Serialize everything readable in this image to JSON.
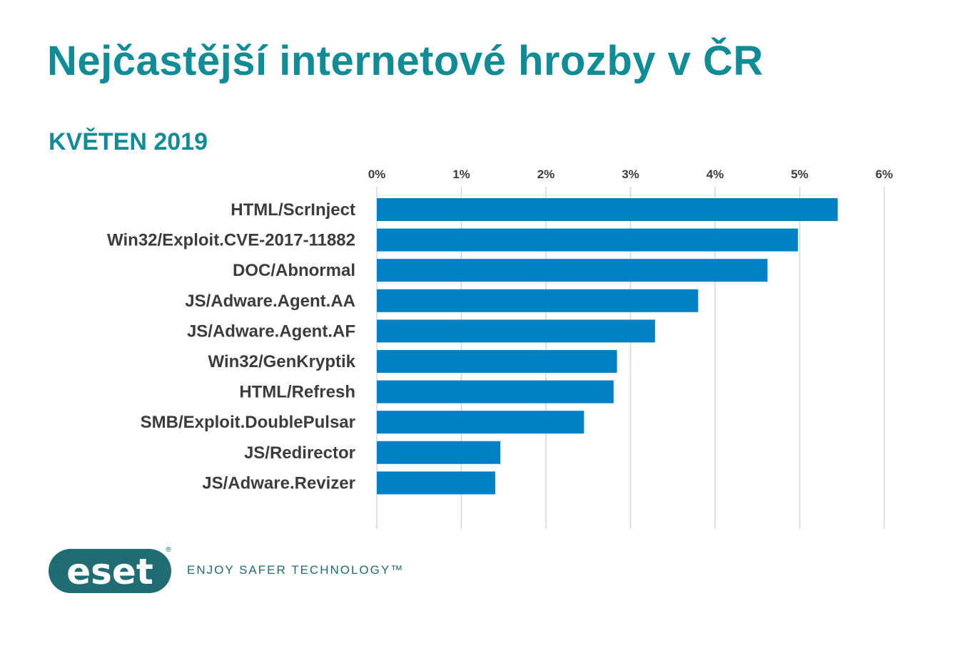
{
  "header": {
    "title": "Nejčastější internetové hrozby v ČR",
    "subtitle": "KVĚTEN 2019"
  },
  "colors": {
    "accent": "#0f8c96",
    "bar": "#0081c6",
    "grid": "#d6d6d6",
    "text": "#3c3c3c",
    "logo": "#1f6d72"
  },
  "chart_data": {
    "type": "bar",
    "orientation": "horizontal",
    "categories": [
      "HTML/ScrInject",
      "Win32/Exploit.CVE-2017-11882",
      "DOC/Abnormal",
      "JS/Adware.Agent.AA",
      "JS/Adware.Agent.AF",
      "Win32/GenKryptik",
      "HTML/Refresh",
      "SMB/Exploit.DoublePulsar",
      "JS/Redirector",
      "JS/Adware.Revizer"
    ],
    "values": [
      5.45,
      4.98,
      4.62,
      3.8,
      3.29,
      2.84,
      2.8,
      2.45,
      1.46,
      1.4
    ],
    "unit": "%",
    "xlim": [
      0,
      6
    ],
    "tick_labels": [
      "0%",
      "1%",
      "2%",
      "3%",
      "4%",
      "5%",
      "6%"
    ],
    "grid": true,
    "axis_position": "top"
  },
  "footer": {
    "logo_text": "eset",
    "logo_mark": "®",
    "tagline": "ENJOY SAFER TECHNOLOGY™"
  }
}
